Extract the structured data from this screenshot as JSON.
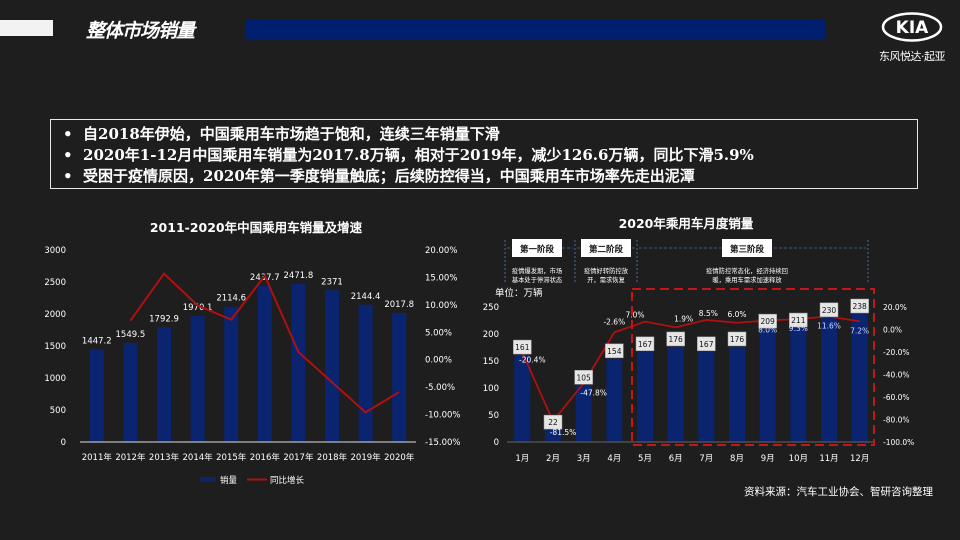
{
  "header": {
    "title": "整体市场销量",
    "logo_text": "KIA",
    "brand": "东风悦达·起亚"
  },
  "bullets": [
    "自2018年伊始，中国乘用车市场趋于饱和，连续三年销量下滑",
    "2020年1-12月中国乘用车销量为2017.8万辆，相对于2019年，减少126.6万辆，同比下滑5.9%",
    "受困于疫情原因，2020年第一季度销量触底；后续防控得当，中国乘用车市场率先走出泥潭"
  ],
  "source": "资料来源：汽车工业协会、智研咨询整理",
  "colors": {
    "bar": "#0a2470",
    "line": "#b01010",
    "background": "#1e1e1e",
    "accent": "#001f6e"
  },
  "chart_data": [
    {
      "type": "bar+line",
      "title": "2011-2020年中国乘用车销量及增速",
      "categories": [
        "2011年",
        "2012年",
        "2013年",
        "2014年",
        "2015年",
        "2016年",
        "2017年",
        "2018年",
        "2019年",
        "2020年"
      ],
      "series": [
        {
          "name": "销量",
          "type": "bar",
          "axis": "left",
          "values": [
            1447.2,
            1549.5,
            1792.9,
            1970.1,
            2114.6,
            2437.7,
            2471.8,
            2371,
            2144.4,
            2017.8
          ],
          "labels": [
            "1447.2",
            "1549.5",
            "1792.9",
            "1970.1",
            "2114.6",
            "2437.7",
            "2471.8",
            "2371",
            "2144.4",
            "2017.8"
          ]
        },
        {
          "name": "同比增长",
          "type": "line",
          "axis": "right",
          "values": [
            null,
            7.1,
            15.7,
            9.9,
            7.3,
            15.3,
            1.4,
            -4.1,
            -9.6,
            -5.9
          ]
        }
      ],
      "yleft": {
        "range": [
          0,
          3000
        ],
        "ticks": [
          "0",
          "500",
          "1000",
          "1500",
          "2000",
          "2500",
          "3000"
        ]
      },
      "yright": {
        "range": [
          -15,
          20
        ],
        "ticks": [
          "-15.00%",
          "-10.00%",
          "-5.00%",
          "0.00%",
          "5.00%",
          "10.00%",
          "15.00%",
          "20.00%"
        ]
      },
      "legend": "bottom"
    },
    {
      "type": "bar+line",
      "title": "2020年乘用车月度销量",
      "unit": "单位：万辆",
      "categories": [
        "1月",
        "2月",
        "3月",
        "4月",
        "5月",
        "6月",
        "7月",
        "8月",
        "9月",
        "10月",
        "11月",
        "12月"
      ],
      "series": [
        {
          "type": "bar",
          "axis": "left",
          "values": [
            161,
            22,
            105,
            154,
            167,
            176,
            167,
            176,
            209,
            211,
            230,
            238
          ],
          "labels": [
            "161",
            "22",
            "105",
            "154",
            "167",
            "176",
            "167",
            "176",
            "209",
            "211",
            "230",
            "238"
          ]
        },
        {
          "type": "line",
          "axis": "right",
          "values": [
            -20.4,
            -81.5,
            -47.8,
            -2.6,
            7.0,
            1.9,
            8.5,
            6.0,
            8.0,
            9.3,
            11.6,
            7.2
          ],
          "labels": [
            "-20.4%",
            "-81.5%",
            "-47.8%",
            "-2.6%",
            "7.0%",
            "1.9%",
            "8.5%",
            "6.0%",
            "8.0%",
            "9.3%",
            "11.6%",
            "7.2%"
          ]
        }
      ],
      "yleft": {
        "range": [
          0,
          250
        ],
        "ticks": [
          "0",
          "50",
          "100",
          "150",
          "200",
          "250"
        ]
      },
      "yright": {
        "range": [
          -100,
          20
        ],
        "ticks": [
          "-100.0%",
          "-80.0%",
          "-60.0%",
          "-40.0%",
          "-20.0%",
          "0.0%",
          "20.0%"
        ]
      },
      "phases": [
        {
          "label": "第一阶段",
          "desc": [
            "疫情爆发期，市场",
            "基本处于停滞状态"
          ]
        },
        {
          "label": "第二阶段",
          "desc": [
            "疫情好转防控放",
            "开，需求恢复"
          ]
        },
        {
          "label": "第三阶段",
          "desc": [
            "疫情防控常态化，经济持续回",
            "暖，乘用车需求加速释放"
          ]
        }
      ]
    }
  ]
}
